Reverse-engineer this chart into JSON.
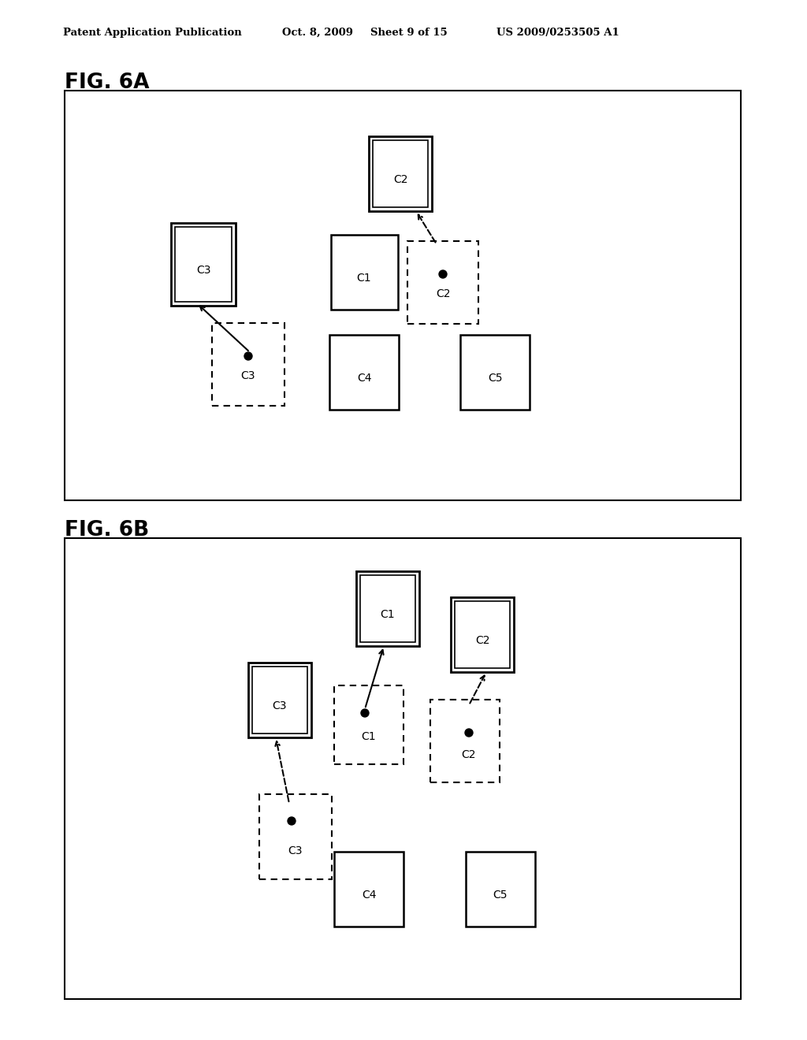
{
  "bg_color": "#ffffff",
  "header_text": "Patent Application Publication",
  "header_date": "Oct. 8, 2009",
  "header_sheet": "Sheet 9 of 15",
  "header_patent": "US 2009/0253505 A1",
  "fig6a_label": "FIG. 6A",
  "fig6b_label": "FIG. 6B"
}
